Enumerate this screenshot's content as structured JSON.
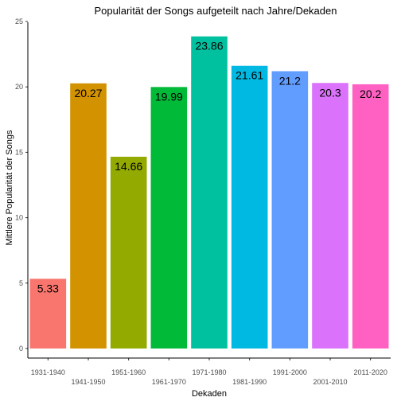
{
  "chart_data": {
    "type": "bar",
    "title": "Popularität der Songs aufgeteilt nach Jahre/Dekaden",
    "xlabel": "Dekaden",
    "ylabel": "Mittlere Popularität der Songs",
    "ylim": [
      0,
      25
    ],
    "yticks": [
      "0",
      "5",
      "10",
      "15",
      "20",
      "25"
    ],
    "ytick_values": [
      0,
      5,
      10,
      15,
      20,
      25
    ],
    "grid": false,
    "legend": "none",
    "categories": [
      "1931-1940",
      "1941-1950",
      "1951-1960",
      "1961-1970",
      "1971-1980",
      "1981-1990",
      "1991-2000",
      "2001-2010",
      "2011-2020"
    ],
    "values": [
      5.33,
      20.27,
      14.66,
      19.99,
      23.86,
      21.61,
      21.2,
      20.3,
      20.2
    ],
    "data_labels": [
      "5.33",
      "20.27",
      "14.66",
      "19.99",
      "23.86",
      "21.61",
      "21.2",
      "20.3",
      "20.2"
    ],
    "colors": [
      "#F8766D",
      "#D39200",
      "#93AA00",
      "#00BA38",
      "#00C19F",
      "#00B9E3",
      "#619CFF",
      "#DB72FB",
      "#FF61C3"
    ]
  }
}
